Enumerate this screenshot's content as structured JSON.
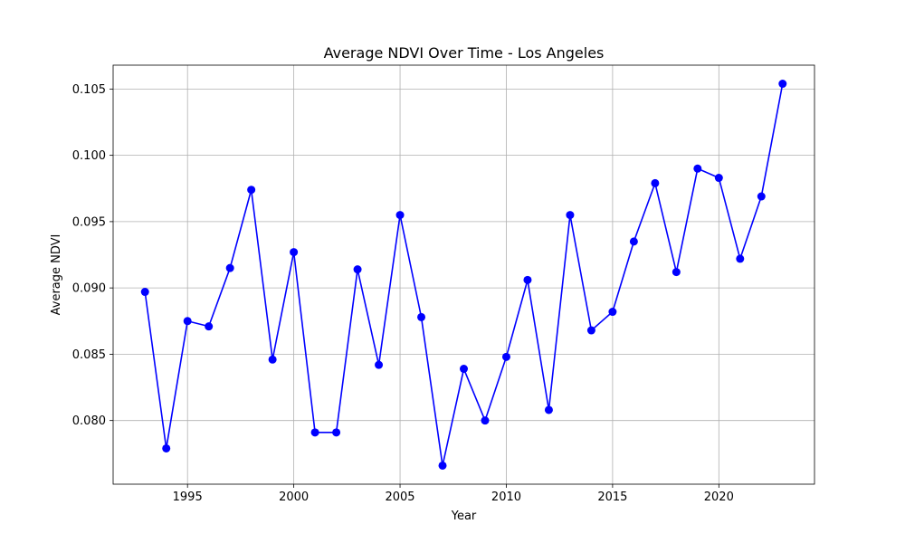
{
  "chart_data": {
    "type": "line",
    "title": "Average NDVI Over Time - Los Angeles",
    "xlabel": "Year",
    "ylabel": "Average NDVI",
    "xlim": [
      1991.5,
      2024.5
    ],
    "ylim": [
      0.0752,
      0.1068
    ],
    "xticks": [
      1995,
      2000,
      2005,
      2010,
      2015,
      2020
    ],
    "yticks": [
      0.08,
      0.085,
      0.09,
      0.095,
      0.1,
      0.105
    ],
    "ytick_labels": [
      "0.080",
      "0.085",
      "0.090",
      "0.095",
      "0.100",
      "0.105"
    ],
    "grid": true,
    "series": [
      {
        "color": "#0000ff",
        "marker": "circle",
        "x": [
          1993,
          1994,
          1995,
          1996,
          1997,
          1998,
          1999,
          2000,
          2001,
          2002,
          2003,
          2004,
          2005,
          2006,
          2007,
          2008,
          2009,
          2010,
          2011,
          2012,
          2013,
          2014,
          2015,
          2016,
          2017,
          2018,
          2019,
          2020,
          2021,
          2022,
          2023
        ],
        "y": [
          0.0897,
          0.0779,
          0.0875,
          0.0871,
          0.0915,
          0.0974,
          0.0846,
          0.0927,
          0.0791,
          0.0791,
          0.0914,
          0.0842,
          0.0955,
          0.0878,
          0.0766,
          0.0839,
          0.08,
          0.0848,
          0.0906,
          0.0808,
          0.0955,
          0.0868,
          0.0882,
          0.0935,
          0.0979,
          0.0912,
          0.099,
          0.0983,
          0.0922,
          0.0969,
          0.1054
        ]
      }
    ]
  }
}
